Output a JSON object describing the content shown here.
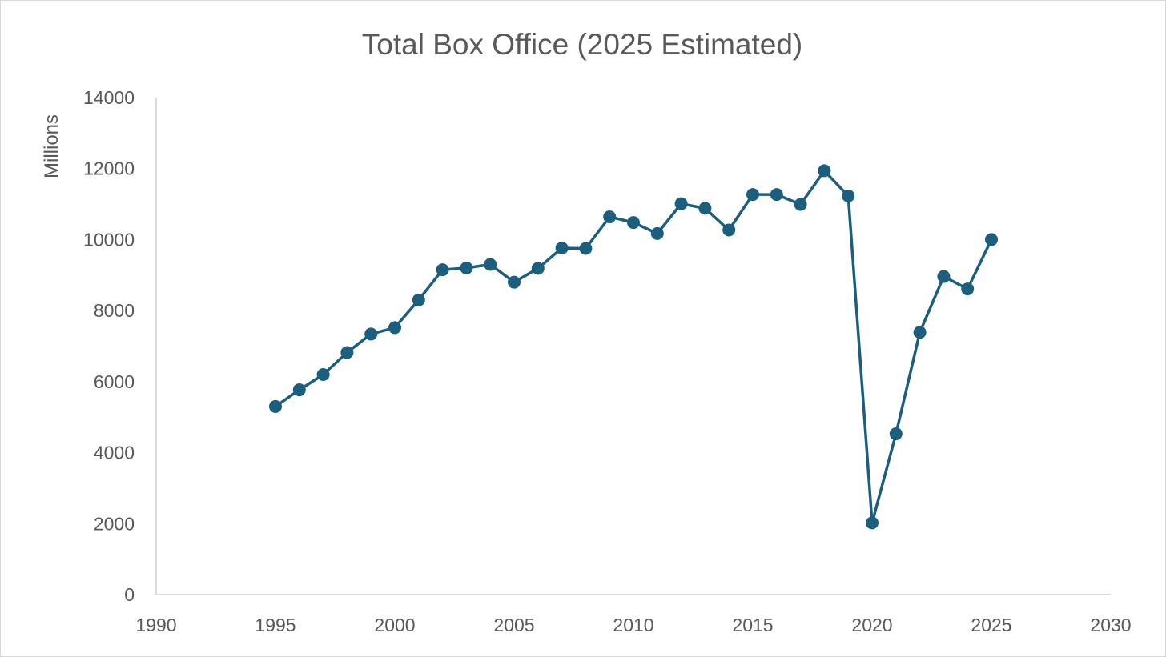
{
  "chart_data": {
    "type": "scatter",
    "title": "Total Box Office (2025 Estimated)",
    "xlabel": "",
    "ylabel": "Millions",
    "xlim": [
      1990,
      2030
    ],
    "ylim": [
      0,
      14000
    ],
    "x_ticks": [
      1990,
      1995,
      2000,
      2005,
      2010,
      2015,
      2020,
      2025,
      2030
    ],
    "y_ticks": [
      0,
      2000,
      4000,
      6000,
      8000,
      10000,
      12000,
      14000
    ],
    "grid": false,
    "legend": "none",
    "marker": "circle",
    "line": true,
    "series": [
      {
        "color": "#1b5e7e",
        "x": [
          1995,
          1996,
          1997,
          1998,
          1999,
          2000,
          2001,
          2002,
          2003,
          2004,
          2005,
          2006,
          2007,
          2008,
          2009,
          2010,
          2011,
          2012,
          2013,
          2014,
          2015,
          2016,
          2017,
          2018,
          2019,
          2020,
          2021,
          2022,
          2023,
          2024,
          2025
        ],
        "y": [
          5300,
          5770,
          6200,
          6820,
          7340,
          7520,
          8300,
          9150,
          9200,
          9300,
          8800,
          9190,
          9760,
          9750,
          10640,
          10480,
          10170,
          11010,
          10880,
          10270,
          11270,
          11270,
          10990,
          11940,
          11230,
          2020,
          4530,
          7390,
          8960,
          8610,
          10000
        ]
      }
    ]
  }
}
